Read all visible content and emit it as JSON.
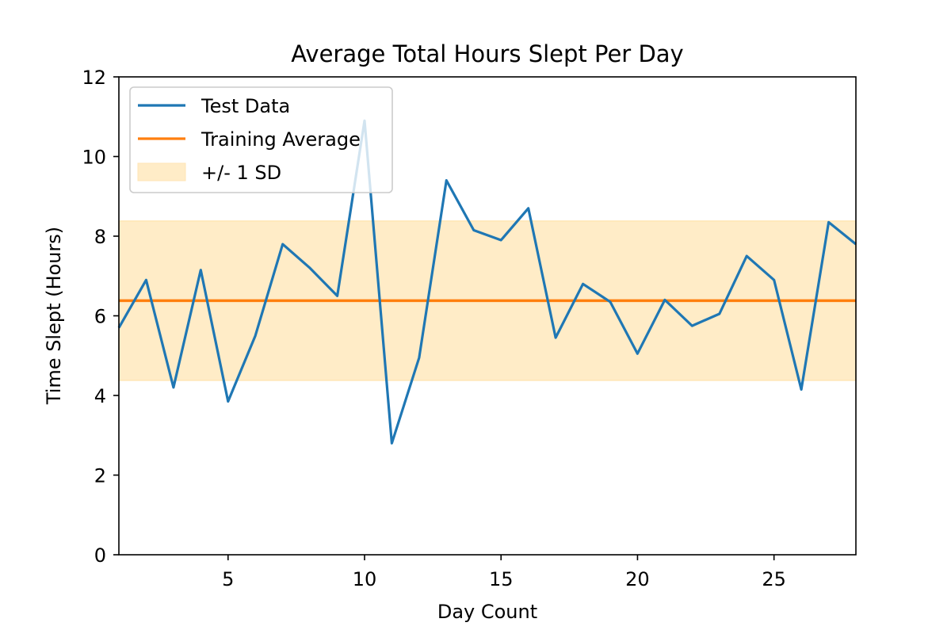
{
  "chart_data": {
    "type": "line",
    "title": "Average Total Hours Slept Per Day",
    "xlabel": "Day Count",
    "ylabel": "Time Slept (Hours)",
    "xlim": [
      1,
      28
    ],
    "ylim": [
      0,
      12
    ],
    "x_ticks": [
      5,
      10,
      15,
      20,
      25
    ],
    "y_ticks": [
      0,
      2,
      4,
      6,
      8,
      10,
      12
    ],
    "grid": false,
    "legend_position": "upper-left",
    "series": [
      {
        "name": "Test Data",
        "kind": "line",
        "color": "#1f77b4",
        "x": [
          1,
          2,
          3,
          4,
          5,
          6,
          7,
          8,
          9,
          10,
          11,
          12,
          13,
          14,
          15,
          16,
          17,
          18,
          19,
          20,
          21,
          22,
          23,
          24,
          25,
          26,
          27,
          28
        ],
        "values": [
          5.7,
          6.9,
          4.2,
          7.15,
          3.85,
          5.5,
          7.8,
          7.2,
          6.5,
          10.9,
          2.8,
          4.95,
          9.4,
          8.15,
          7.9,
          8.7,
          5.45,
          6.8,
          6.35,
          5.05,
          6.4,
          5.75,
          6.05,
          7.5,
          6.9,
          4.15,
          8.35,
          7.8
        ]
      },
      {
        "name": "Training Average",
        "kind": "hline",
        "color": "#ff7f0e",
        "value": 6.38
      },
      {
        "name": "+/- 1 SD",
        "kind": "band",
        "color": "#ffe5b4",
        "low": 4.38,
        "high": 8.38
      }
    ]
  }
}
